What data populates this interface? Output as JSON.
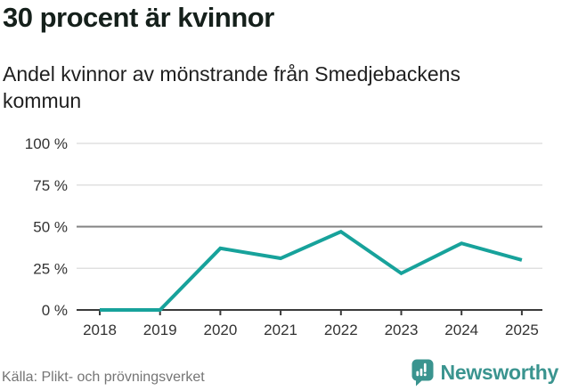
{
  "header": {
    "title": "30 procent är kvinnor",
    "subtitle": "Andel kvinnor av mönstrande från Smedjebackens kommun"
  },
  "chart_data": {
    "type": "line",
    "title": "30 procent är kvinnor",
    "subtitle": "Andel kvinnor av mönstrande från Smedjebackens kommun",
    "x": [
      "2018",
      "2019",
      "2020",
      "2021",
      "2022",
      "2023",
      "2024",
      "2025"
    ],
    "series": [
      {
        "name": "Andel kvinnor av mönstrande (%)",
        "values": [
          0,
          0,
          37,
          31,
          47,
          22,
          40,
          30
        ]
      }
    ],
    "ylim": [
      0,
      100
    ],
    "yticks": [
      0,
      25,
      50,
      75,
      100
    ],
    "ytick_labels": [
      "0 %",
      "25 %",
      "50 %",
      "75 %",
      "100 %"
    ],
    "grid": true,
    "emphasized_gridline": 50,
    "legend": "none"
  },
  "colors": {
    "line": "#17a29b",
    "grid_light": "#e0e0e0",
    "grid_emphasis": "#828282",
    "axis": "#3a3a3a",
    "tick_text": "#333333",
    "brand": "#3a948f"
  },
  "footer": {
    "source": "Källa: Plikt- och prövningsverket",
    "brand": "Newsworthy"
  }
}
